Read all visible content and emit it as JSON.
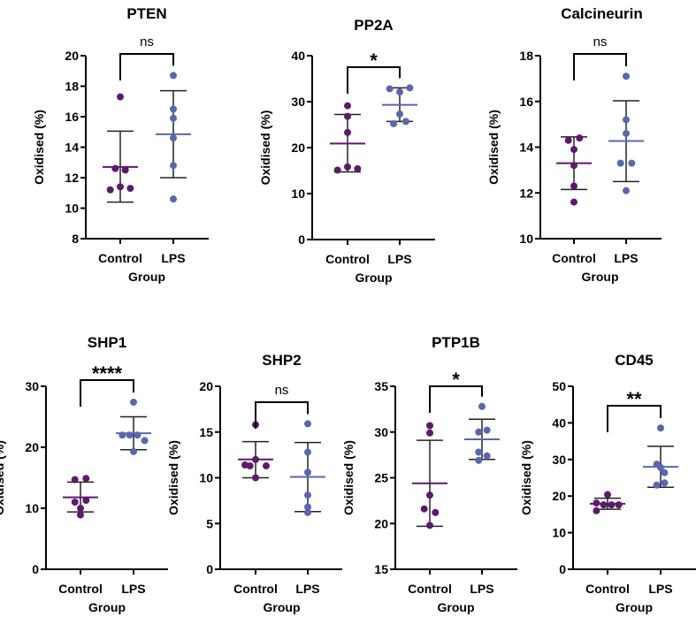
{
  "chart_data": [
    {
      "type": "scatter",
      "title": "PTEN",
      "xlabel": "Group",
      "ylabel": "Oxidised (%)",
      "categories": [
        "Control",
        "LPS"
      ],
      "ylim": [
        8,
        20
      ],
      "yticks": [
        8,
        10,
        12,
        14,
        16,
        18,
        20
      ],
      "significance": "ns",
      "series": [
        {
          "name": "Control",
          "color": "#5c1a6b",
          "values": [
            17.3,
            12.6,
            12.5,
            11.2,
            11.4,
            11.3
          ],
          "mean": 12.7,
          "sd_low": 10.4,
          "sd_high": 15.05
        },
        {
          "name": "LPS",
          "color": "#5a66ae",
          "values": [
            18.7,
            16.5,
            15.9,
            14.6,
            12.8,
            10.6
          ],
          "mean": 14.85,
          "sd_low": 12.0,
          "sd_high": 17.7
        }
      ]
    },
    {
      "type": "scatter",
      "title": "PP2A",
      "xlabel": "Group",
      "ylabel": "Oxidised (%)",
      "categories": [
        "Control",
        "LPS"
      ],
      "ylim": [
        0,
        40
      ],
      "yticks": [
        0,
        10,
        20,
        30,
        40
      ],
      "significance": "*",
      "series": [
        {
          "name": "Control",
          "color": "#5c1a6b",
          "values": [
            29.1,
            26.8,
            23.3,
            15.8,
            15.1,
            15.4
          ],
          "mean": 20.9,
          "sd_low": 14.7,
          "sd_high": 27.2
        },
        {
          "name": "LPS",
          "color": "#5a66ae",
          "values": [
            32.8,
            33.0,
            32.1,
            27.3,
            25.2,
            25.7
          ],
          "mean": 29.3,
          "sd_low": 25.7,
          "sd_high": 33.0
        }
      ]
    },
    {
      "type": "scatter",
      "title": "Calcineurin",
      "xlabel": "Group",
      "ylabel": "Oxidised (%)",
      "categories": [
        "Control",
        "LPS"
      ],
      "ylim": [
        10,
        18
      ],
      "yticks": [
        10,
        12,
        14,
        16,
        18
      ],
      "significance": "ns",
      "series": [
        {
          "name": "Control",
          "color": "#5c1a6b",
          "values": [
            14.3,
            14.4,
            13.9,
            13.2,
            12.3,
            11.6
          ],
          "mean": 13.3,
          "sd_low": 12.15,
          "sd_high": 14.45
        },
        {
          "name": "LPS",
          "color": "#5a66ae",
          "values": [
            17.1,
            15.2,
            14.6,
            13.3,
            13.3,
            12.1
          ],
          "mean": 14.27,
          "sd_low": 12.5,
          "sd_high": 16.03
        }
      ]
    },
    {
      "type": "scatter",
      "title": "SHP1",
      "xlabel": "Group",
      "ylabel": "Oxidised (%)",
      "categories": [
        "Control",
        "LPS"
      ],
      "ylim": [
        0,
        30
      ],
      "yticks": [
        0,
        10,
        20,
        30
      ],
      "significance": "****",
      "series": [
        {
          "name": "Control",
          "color": "#5c1a6b",
          "values": [
            14.7,
            14.9,
            11.0,
            11.3,
            10.0,
            8.9
          ],
          "mean": 11.8,
          "sd_low": 9.4,
          "sd_high": 14.3
        },
        {
          "name": "LPS",
          "color": "#5a66ae",
          "values": [
            27.4,
            22.0,
            22.0,
            22.0,
            21.1,
            19.3
          ],
          "mean": 22.3,
          "sd_low": 19.6,
          "sd_high": 25.0
        }
      ]
    },
    {
      "type": "scatter",
      "title": "SHP2",
      "xlabel": "Group",
      "ylabel": "Oxidised (%)",
      "categories": [
        "Control",
        "LPS"
      ],
      "ylim": [
        0,
        20
      ],
      "yticks": [
        0,
        5,
        10,
        15,
        20
      ],
      "significance": "ns",
      "series": [
        {
          "name": "Control",
          "color": "#5c1a6b",
          "values": [
            15.8,
            12.0,
            11.4,
            11.3,
            11.3,
            10.0
          ],
          "mean": 12.0,
          "sd_low": 10.0,
          "sd_high": 13.95
        },
        {
          "name": "LPS",
          "color": "#5a66ae",
          "values": [
            15.9,
            12.8,
            10.6,
            8.1,
            6.8,
            6.2
          ],
          "mean": 10.1,
          "sd_low": 6.3,
          "sd_high": 13.85
        }
      ]
    },
    {
      "type": "scatter",
      "title": "PTP1B",
      "xlabel": "Group",
      "ylabel": "Oxidised (%)",
      "categories": [
        "Control",
        "LPS"
      ],
      "ylim": [
        15,
        35
      ],
      "yticks": [
        15,
        20,
        25,
        30,
        35
      ],
      "significance": "*",
      "series": [
        {
          "name": "Control",
          "color": "#5c1a6b",
          "values": [
            30.7,
            29.9,
            23.1,
            21.6,
            21.2,
            19.8
          ],
          "mean": 24.4,
          "sd_low": 19.7,
          "sd_high": 29.1
        },
        {
          "name": "LPS",
          "color": "#5a66ae",
          "values": [
            32.8,
            30.0,
            30.2,
            27.8,
            27.4,
            26.9
          ],
          "mean": 29.2,
          "sd_low": 27.0,
          "sd_high": 31.4
        }
      ]
    },
    {
      "type": "scatter",
      "title": "CD45",
      "xlabel": "Group",
      "ylabel": "Oxidised (%)",
      "categories": [
        "Control",
        "LPS"
      ],
      "ylim": [
        0,
        50
      ],
      "yticks": [
        0,
        10,
        20,
        30,
        40,
        50
      ],
      "significance": "**",
      "series": [
        {
          "name": "Control",
          "color": "#5c1a6b",
          "values": [
            20.4,
            18.1,
            17.6,
            17.6,
            17.6,
            16.0
          ],
          "mean": 17.9,
          "sd_low": 16.4,
          "sd_high": 19.4
        },
        {
          "name": "LPS",
          "color": "#5a66ae",
          "values": [
            38.6,
            28.7,
            26.4,
            27.8,
            23.6,
            23.0
          ],
          "mean": 28.0,
          "sd_low": 22.4,
          "sd_high": 33.6
        }
      ]
    }
  ]
}
